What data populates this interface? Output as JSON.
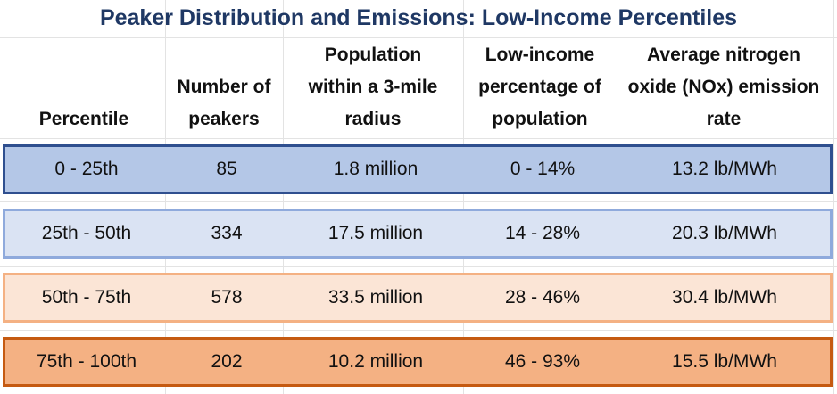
{
  "title": "Peaker Distribution and Emissions: Low-Income Percentiles",
  "columns": [
    "Percentile",
    "Number of\npeakers",
    "Population\nwithin a 3-mile\nradius",
    "Low-income\npercentage of\npopulation",
    "Average nitrogen\noxide (NOx) emission\nrate"
  ],
  "rows": [
    {
      "percentile": "0 - 25th",
      "peakers": "85",
      "population": "1.8 million",
      "low_income": "0 - 14%",
      "nox_rate": "13.2 lb/MWh"
    },
    {
      "percentile": "25th - 50th",
      "peakers": "334",
      "population": "17.5 million",
      "low_income": "14 - 28%",
      "nox_rate": "20.3 lb/MWh"
    },
    {
      "percentile": "50th - 75th",
      "peakers": "578",
      "population": "33.5 million",
      "low_income": "28 - 46%",
      "nox_rate": "30.4 lb/MWh"
    },
    {
      "percentile": "75th - 100th",
      "peakers": "202",
      "population": "10.2 million",
      "low_income": "46 - 93%",
      "nox_rate": "15.5 lb/MWh"
    }
  ],
  "colors": {
    "title": "#1f3864",
    "row1_fill": "#b4c7e7",
    "row2_fill": "#dae3f3",
    "row3_fill": "#fbe5d6",
    "row4_fill": "#f4b183"
  }
}
